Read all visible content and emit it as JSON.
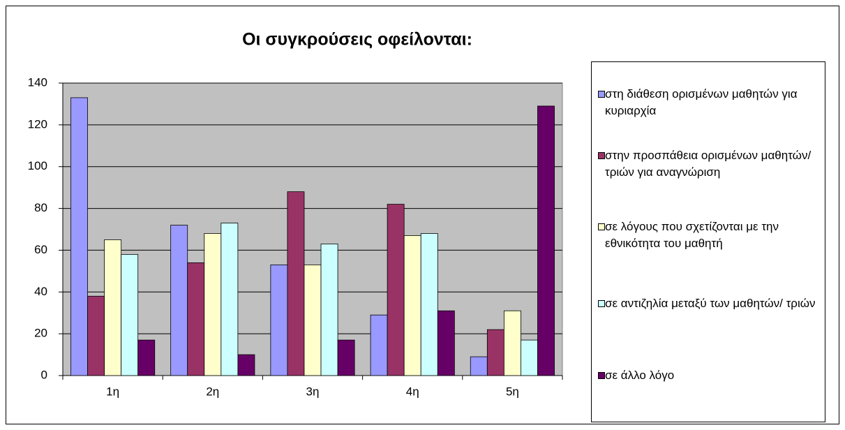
{
  "chart_data": {
    "type": "bar",
    "title": "Οι συγκρούσεις οφείλονται:",
    "categories": [
      "1η",
      "2η",
      "3η",
      "4η",
      "5η"
    ],
    "series": [
      {
        "name": "στη διάθεση ορισμένων μαθητών για κυριαρχία",
        "color": "#9999FF",
        "values": [
          133,
          72,
          53,
          29,
          9
        ]
      },
      {
        "name": "στην προσπάθεια ορισμένων μαθητών/τριών για αναγνώριση",
        "color": "#993366",
        "values": [
          38,
          54,
          88,
          82,
          22
        ]
      },
      {
        "name": "σε λόγους που σχετίζονται με την εθνικότητα του μαθητή",
        "color": "#FFFFCC",
        "values": [
          65,
          68,
          53,
          67,
          31
        ]
      },
      {
        "name": "σε αντιζηλία μεταξύ των μαθητών/ τριών",
        "color": "#CCFFFF",
        "values": [
          58,
          73,
          63,
          68,
          17
        ]
      },
      {
        "name": "σε άλλο λόγο",
        "color": "#660066",
        "values": [
          17,
          10,
          17,
          31,
          129
        ]
      }
    ],
    "ylim": [
      0,
      140
    ],
    "yticks": [
      0,
      20,
      40,
      60,
      80,
      100,
      120,
      140
    ],
    "grid": true,
    "legend": "right"
  }
}
